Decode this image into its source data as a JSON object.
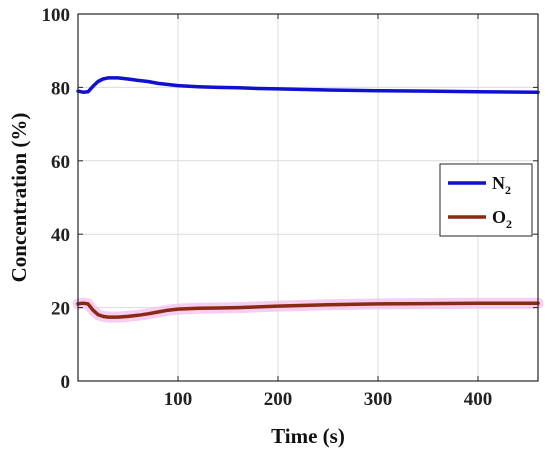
{
  "chart_data": {
    "type": "line",
    "title": "",
    "xlabel": "Time (s)",
    "ylabel": "Concentration (%)",
    "xlim": [
      0,
      460
    ],
    "ylim": [
      0,
      100
    ],
    "x_ticks": [
      100,
      200,
      300,
      400
    ],
    "y_ticks": [
      0,
      20,
      40,
      60,
      80,
      100
    ],
    "grid": true,
    "legend_position": "right-middle",
    "series": [
      {
        "name": "N",
        "subscript": "2",
        "color": "#1010d0",
        "points": [
          [
            0,
            79
          ],
          [
            5,
            78.7
          ],
          [
            10,
            78.8
          ],
          [
            15,
            80.3
          ],
          [
            20,
            81.6
          ],
          [
            25,
            82.3
          ],
          [
            30,
            82.6
          ],
          [
            40,
            82.6
          ],
          [
            50,
            82.3
          ],
          [
            60,
            81.9
          ],
          [
            70,
            81.6
          ],
          [
            80,
            81.1
          ],
          [
            90,
            80.8
          ],
          [
            100,
            80.5
          ],
          [
            120,
            80.2
          ],
          [
            140,
            80.0
          ],
          [
            160,
            79.9
          ],
          [
            180,
            79.7
          ],
          [
            200,
            79.6
          ],
          [
            250,
            79.3
          ],
          [
            300,
            79.1
          ],
          [
            350,
            79.0
          ],
          [
            400,
            78.8
          ],
          [
            460,
            78.7
          ]
        ]
      },
      {
        "name": "O",
        "subscript": "2",
        "color": "#8b2a12",
        "band_color": "#f4c2ee",
        "points": [
          [
            0,
            21
          ],
          [
            5,
            21.2
          ],
          [
            10,
            21.0
          ],
          [
            15,
            19.3
          ],
          [
            20,
            18.1
          ],
          [
            25,
            17.6
          ],
          [
            30,
            17.4
          ],
          [
            40,
            17.4
          ],
          [
            50,
            17.6
          ],
          [
            60,
            17.9
          ],
          [
            70,
            18.3
          ],
          [
            80,
            18.8
          ],
          [
            90,
            19.3
          ],
          [
            100,
            19.6
          ],
          [
            120,
            19.8
          ],
          [
            140,
            19.9
          ],
          [
            160,
            20.0
          ],
          [
            180,
            20.2
          ],
          [
            200,
            20.4
          ],
          [
            250,
            20.8
          ],
          [
            300,
            21.0
          ],
          [
            350,
            21.1
          ],
          [
            400,
            21.2
          ],
          [
            460,
            21.2
          ]
        ]
      }
    ]
  }
}
